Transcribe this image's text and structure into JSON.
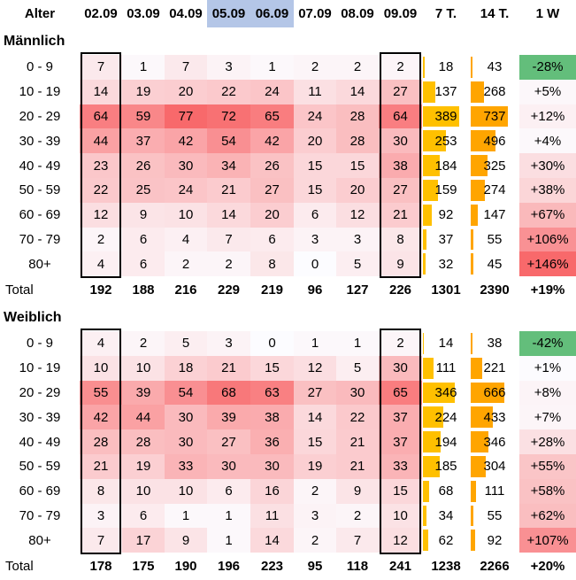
{
  "chart_data": {
    "type": "table",
    "columns": [
      "Alter",
      "02.09",
      "03.09",
      "04.09",
      "05.09",
      "06.09",
      "07.09",
      "08.09",
      "09.09",
      "7 T.",
      "14 T.",
      "1 W"
    ],
    "weekend_columns": [
      "05.09",
      "06.09"
    ],
    "total_label": "Total",
    "sections": [
      {
        "title": "Männlich",
        "rows": [
          {
            "age": "0 - 9",
            "days": [
              7,
              1,
              7,
              3,
              1,
              2,
              2,
              2
            ],
            "t7": 18,
            "t14": 43,
            "w1": "-28%"
          },
          {
            "age": "10 - 19",
            "days": [
              14,
              19,
              20,
              22,
              24,
              11,
              14,
              27
            ],
            "t7": 137,
            "t14": 268,
            "w1": "+5%"
          },
          {
            "age": "20 - 29",
            "days": [
              64,
              59,
              77,
              72,
              65,
              24,
              28,
              64
            ],
            "t7": 389,
            "t14": 737,
            "w1": "+12%"
          },
          {
            "age": "30 - 39",
            "days": [
              44,
              37,
              42,
              54,
              42,
              20,
              28,
              30
            ],
            "t7": 253,
            "t14": 496,
            "w1": "+4%"
          },
          {
            "age": "40 - 49",
            "days": [
              23,
              26,
              30,
              34,
              26,
              15,
              15,
              38
            ],
            "t7": 184,
            "t14": 325,
            "w1": "+30%"
          },
          {
            "age": "50 - 59",
            "days": [
              22,
              25,
              24,
              21,
              27,
              15,
              20,
              27
            ],
            "t7": 159,
            "t14": 274,
            "w1": "+38%"
          },
          {
            "age": "60 - 69",
            "days": [
              12,
              9,
              10,
              14,
              20,
              6,
              12,
              21
            ],
            "t7": 92,
            "t14": 147,
            "w1": "+67%"
          },
          {
            "age": "70 - 79",
            "days": [
              2,
              6,
              4,
              7,
              6,
              3,
              3,
              8
            ],
            "t7": 37,
            "t14": 55,
            "w1": "+106%"
          },
          {
            "age": "80+",
            "days": [
              4,
              6,
              2,
              2,
              8,
              0,
              5,
              9
            ],
            "t7": 32,
            "t14": 45,
            "w1": "+146%"
          }
        ],
        "total": {
          "days": [
            192,
            188,
            216,
            229,
            219,
            96,
            127,
            226
          ],
          "t7": 1301,
          "t14": 2390,
          "w1": "+19%"
        }
      },
      {
        "title": "Weiblich",
        "rows": [
          {
            "age": "0 - 9",
            "days": [
              4,
              2,
              5,
              3,
              0,
              1,
              1,
              2
            ],
            "t7": 14,
            "t14": 38,
            "w1": "-42%"
          },
          {
            "age": "10 - 19",
            "days": [
              10,
              10,
              18,
              21,
              15,
              12,
              5,
              30
            ],
            "t7": 111,
            "t14": 221,
            "w1": "+1%"
          },
          {
            "age": "20 - 29",
            "days": [
              55,
              39,
              54,
              68,
              63,
              27,
              30,
              65
            ],
            "t7": 346,
            "t14": 666,
            "w1": "+8%"
          },
          {
            "age": "30 - 39",
            "days": [
              42,
              44,
              30,
              39,
              38,
              14,
              22,
              37
            ],
            "t7": 224,
            "t14": 433,
            "w1": "+7%"
          },
          {
            "age": "40 - 49",
            "days": [
              28,
              28,
              30,
              27,
              36,
              15,
              21,
              37
            ],
            "t7": 194,
            "t14": 346,
            "w1": "+28%"
          },
          {
            "age": "50 - 59",
            "days": [
              21,
              19,
              33,
              30,
              30,
              19,
              21,
              33
            ],
            "t7": 185,
            "t14": 304,
            "w1": "+55%"
          },
          {
            "age": "60 - 69",
            "days": [
              8,
              10,
              10,
              6,
              16,
              2,
              9,
              15
            ],
            "t7": 68,
            "t14": 111,
            "w1": "+58%"
          },
          {
            "age": "70 - 79",
            "days": [
              3,
              6,
              1,
              1,
              11,
              3,
              2,
              10
            ],
            "t7": 34,
            "t14": 55,
            "w1": "+62%"
          },
          {
            "age": "80+",
            "days": [
              7,
              17,
              9,
              1,
              14,
              2,
              7,
              12
            ],
            "t7": 62,
            "t14": 92,
            "w1": "+107%"
          }
        ],
        "total": {
          "days": [
            178,
            175,
            190,
            196,
            223,
            95,
            118,
            241
          ],
          "t7": 1238,
          "t14": 2266,
          "w1": "+20%"
        }
      }
    ]
  },
  "colors": {
    "heat_high": "#f8696b",
    "heat_low": "#fcfcff",
    "bar_7t": "#ffc000",
    "bar_14t": "#ffa500",
    "negative_change": "#63be7b",
    "weekend_header": "#b4c6e7"
  }
}
